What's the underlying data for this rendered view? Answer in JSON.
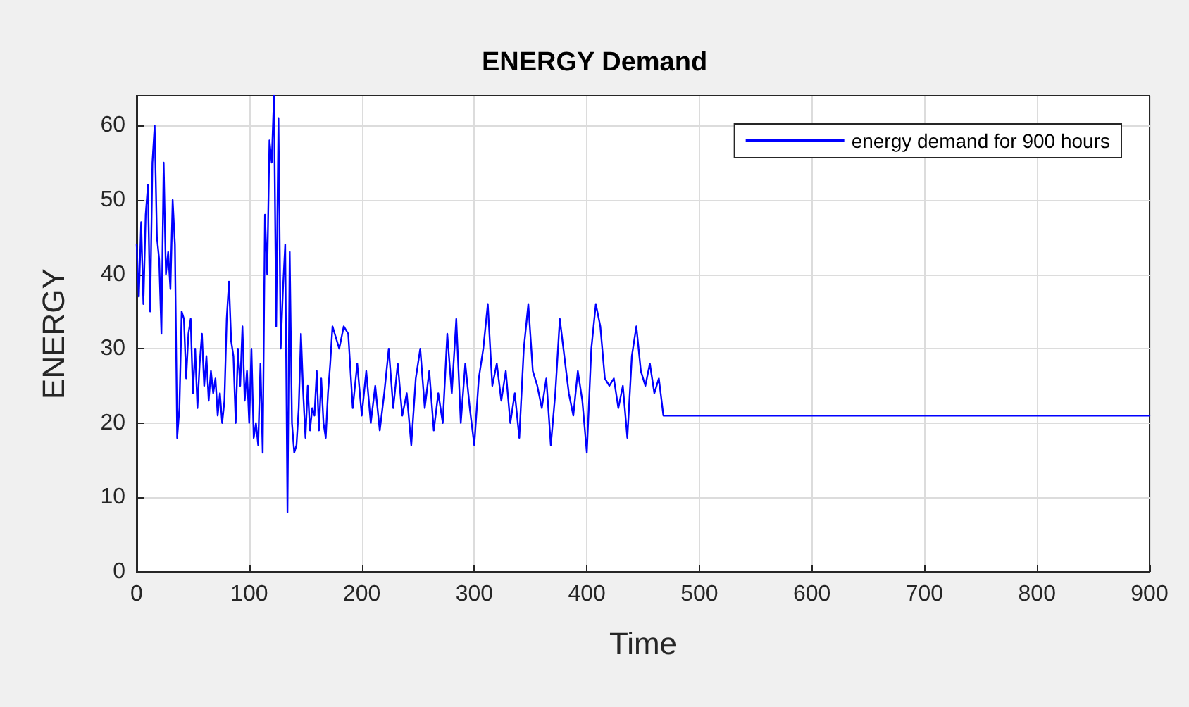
{
  "chart_data": {
    "type": "line",
    "title": "ENERGY Demand",
    "xlabel": "Time",
    "ylabel": "ENERGY",
    "xlim": [
      0,
      900
    ],
    "xticks": [
      0,
      100,
      200,
      300,
      400,
      500,
      600,
      700,
      800,
      900
    ],
    "ylim": [
      0,
      64
    ],
    "yticks": [
      0,
      10,
      20,
      30,
      40,
      50,
      60
    ],
    "grid": true,
    "legend": "top right",
    "marker": "none",
    "line_style": "solid",
    "series": [
      {
        "name": "energy demand for 900 hours",
        "color": "#0000ff",
        "x": [
          0,
          2,
          4,
          6,
          8,
          10,
          12,
          14,
          16,
          18,
          20,
          22,
          24,
          26,
          28,
          30,
          32,
          34,
          36,
          38,
          40,
          42,
          44,
          46,
          48,
          50,
          52,
          54,
          56,
          58,
          60,
          62,
          64,
          66,
          68,
          70,
          72,
          74,
          76,
          78,
          80,
          82,
          84,
          86,
          88,
          90,
          92,
          94,
          96,
          98,
          100,
          102,
          104,
          106,
          108,
          110,
          112,
          114,
          116,
          118,
          120,
          122,
          124,
          126,
          128,
          130,
          132,
          134,
          136,
          138,
          140,
          142,
          144,
          146,
          148,
          150,
          152,
          154,
          156,
          158,
          160,
          162,
          164,
          166,
          168,
          170,
          172,
          174,
          176,
          180,
          184,
          188,
          192,
          196,
          200,
          204,
          208,
          212,
          216,
          220,
          224,
          228,
          232,
          236,
          240,
          244,
          248,
          252,
          256,
          260,
          264,
          268,
          272,
          276,
          280,
          284,
          288,
          292,
          296,
          300,
          304,
          308,
          312,
          316,
          320,
          324,
          328,
          332,
          336,
          340,
          344,
          348,
          352,
          356,
          360,
          364,
          368,
          372,
          376,
          380,
          384,
          388,
          392,
          396,
          400,
          404,
          408,
          412,
          416,
          420,
          424,
          428,
          432,
          436,
          440,
          444,
          448,
          452,
          456,
          460,
          464,
          468,
          470,
          900
        ],
        "values": [
          44,
          37,
          47,
          36,
          48,
          52,
          35,
          55,
          60,
          45,
          42,
          32,
          55,
          40,
          43,
          38,
          50,
          44,
          18,
          22,
          35,
          34,
          26,
          32,
          34,
          24,
          30,
          22,
          28,
          32,
          25,
          29,
          23,
          27,
          24,
          26,
          21,
          24,
          20,
          23,
          34,
          39,
          31,
          29,
          20,
          30,
          25,
          33,
          23,
          27,
          20,
          30,
          18,
          20,
          17,
          28,
          16,
          48,
          40,
          58,
          55,
          64,
          33,
          61,
          30,
          38,
          44,
          8,
          43,
          20,
          16,
          17,
          22,
          32,
          24,
          18,
          25,
          19,
          22,
          21,
          27,
          19,
          26,
          20,
          18,
          24,
          28,
          33,
          32,
          30,
          33,
          32,
          22,
          28,
          21,
          27,
          20,
          25,
          19,
          24,
          30,
          22,
          28,
          21,
          24,
          17,
          26,
          30,
          22,
          27,
          19,
          24,
          20,
          32,
          24,
          34,
          20,
          28,
          22,
          17,
          26,
          30,
          36,
          25,
          28,
          23,
          27,
          20,
          24,
          18,
          30,
          36,
          27,
          25,
          22,
          26,
          17,
          24,
          34,
          29,
          24,
          21,
          27,
          23,
          16,
          30,
          36,
          33,
          26,
          25,
          26,
          22,
          25,
          18,
          29,
          33,
          27,
          25,
          28,
          24,
          26,
          21,
          21,
          21
        ]
      }
    ]
  }
}
